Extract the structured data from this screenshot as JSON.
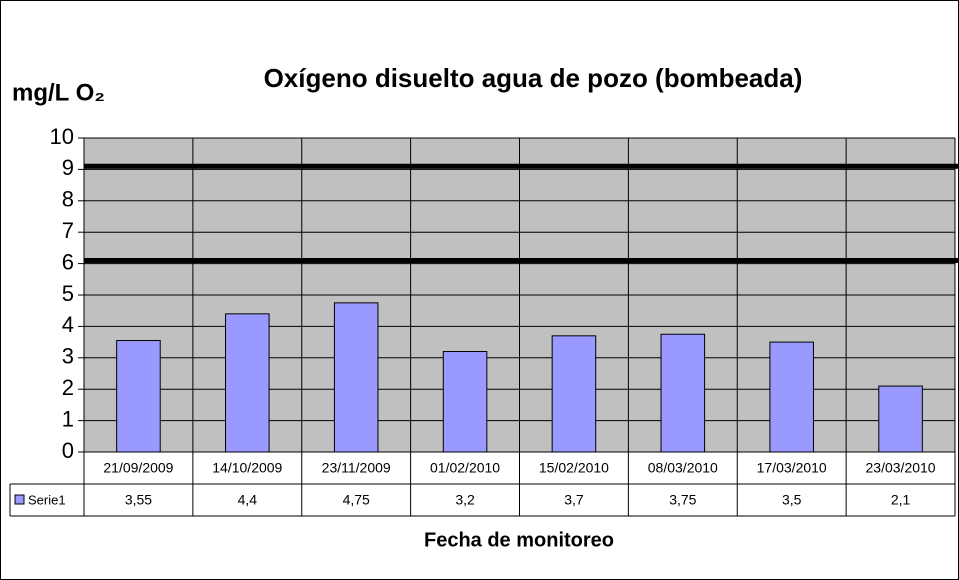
{
  "chart_data": {
    "type": "bar",
    "title": "Oxígeno disuelto agua de pozo (bombeada)",
    "y_label": "mg/L O₂",
    "x_label": "Fecha de monitoreo",
    "categories": [
      "21/09/2009",
      "14/10/2009",
      "23/11/2009",
      "01/02/2010",
      "15/02/2010",
      "08/03/2010",
      "17/03/2010",
      "23/03/2010"
    ],
    "series": [
      {
        "name": "Serie1",
        "color": "#9999ff",
        "values": [
          3.55,
          4.4,
          4.75,
          3.2,
          3.7,
          3.75,
          3.5,
          2.1
        ],
        "value_labels": [
          "3,55",
          "4,4",
          "4,75",
          "3,2",
          "3,7",
          "3,75",
          "3,5",
          "2,1"
        ]
      }
    ],
    "ylim": [
      0,
      10
    ],
    "yticks": [
      0,
      1,
      2,
      3,
      4,
      5,
      6,
      7,
      8,
      9,
      10
    ],
    "grid": true,
    "reference_lines": [
      9.1,
      6.1
    ]
  }
}
